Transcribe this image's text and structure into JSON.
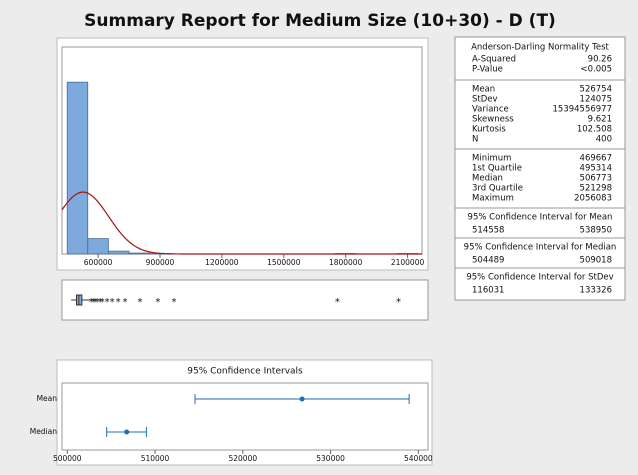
{
  "title": "Summary Report for Medium Size (10+30) - D (T)",
  "chart_data": [
    {
      "type": "histogram",
      "bins": [
        450000,
        550000,
        650000,
        750000,
        850000,
        950000,
        1050000,
        1150000,
        1250000,
        1350000,
        1450000,
        1550000,
        1650000,
        1750000,
        1850000,
        1950000,
        2050000,
        2150000
      ],
      "values": [
        357,
        32,
        6,
        2,
        1,
        0,
        0,
        0,
        0,
        0,
        0,
        0,
        0,
        1,
        0,
        0,
        1
      ],
      "color": "#7ea9dc",
      "curve_color": "#a01414",
      "xlim": [
        425000,
        2170000
      ],
      "xticks": [
        600000,
        900000,
        1200000,
        1500000,
        1800000,
        2100000
      ],
      "ylim": [
        0,
        430
      ]
    },
    {
      "type": "boxplot",
      "whisker_low": 469667,
      "q1": 495314,
      "median": 506773,
      "q3": 521298,
      "whisker_high": 558000,
      "outliers": [
        566000,
        575800,
        585000,
        595000,
        609700,
        620000,
        643500,
        667700,
        697000,
        730600,
        803000,
        890000,
        967800,
        1760000,
        2056083
      ],
      "xlim": [
        425000,
        2170000
      ]
    },
    {
      "type": "interval",
      "title": "95% Confidence Intervals",
      "categories": [
        "Mean",
        "Median"
      ],
      "values": [
        526754,
        506773
      ],
      "lower": [
        514558,
        504489
      ],
      "upper": [
        538950,
        509018
      ],
      "color": "#1f6db5",
      "xlim": [
        499400,
        541100
      ],
      "xticks": [
        500000,
        510000,
        520000,
        530000,
        540000
      ]
    }
  ],
  "table": {
    "normality": {
      "title": "Anderson-Darling Normality Test",
      "rows": [
        [
          "A-Squared",
          "90.26"
        ],
        [
          "P-Value",
          "<0.005"
        ]
      ]
    },
    "moments": {
      "rows": [
        [
          "Mean",
          "526754"
        ],
        [
          "StDev",
          "124075"
        ],
        [
          "Variance",
          "15394556977"
        ],
        [
          "Skewness",
          "9.621"
        ],
        [
          "Kurtosis",
          "102.508"
        ],
        [
          "N",
          "400"
        ]
      ]
    },
    "quantiles": {
      "rows": [
        [
          "Minimum",
          "469667"
        ],
        [
          "1st Quartile",
          "495314"
        ],
        [
          "Median",
          "506773"
        ],
        [
          "3rd Quartile",
          "521298"
        ],
        [
          "Maximum",
          "2056083"
        ]
      ]
    },
    "intervals": [
      {
        "title": "95% Confidence Interval for Mean",
        "values": [
          "514558",
          "538950"
        ]
      },
      {
        "title": "95% Confidence Interval for Median",
        "values": [
          "504489",
          "509018"
        ]
      },
      {
        "title": "95% Confidence Interval for StDev",
        "values": [
          "116031",
          "133326"
        ]
      }
    ]
  }
}
